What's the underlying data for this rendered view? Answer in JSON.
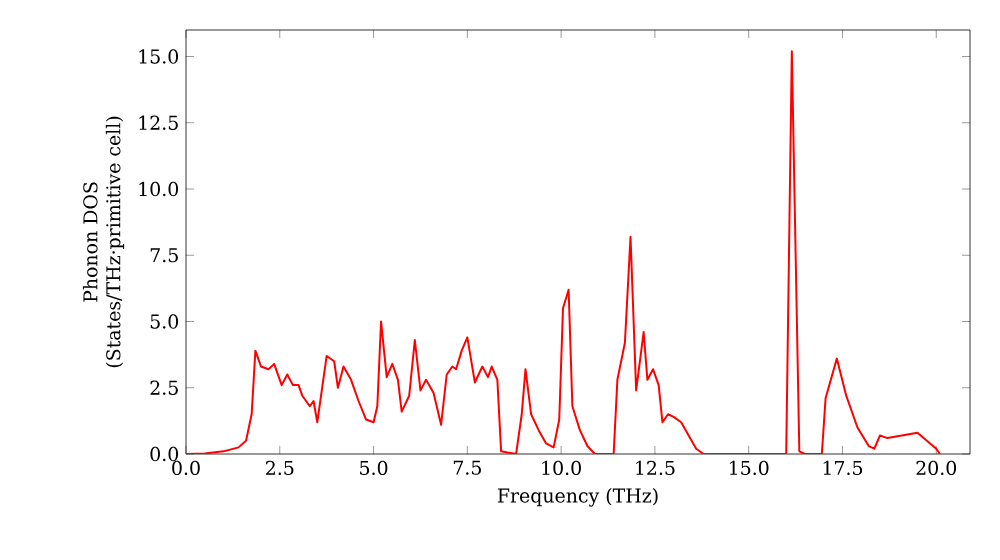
{
  "chart_data": {
    "type": "line",
    "xlabel": "Frequency (THz)",
    "ylabel": "Phonon DOS\n(States/THz·primitive cell)",
    "xlim": [
      0,
      20.9
    ],
    "ylim": [
      0,
      16
    ],
    "xticks": [
      {
        "value": 0,
        "label": "0.0"
      },
      {
        "value": 2.5,
        "label": "2.5"
      },
      {
        "value": 5,
        "label": "5.0"
      },
      {
        "value": 7.5,
        "label": "7.5"
      },
      {
        "value": 10,
        "label": "10.0"
      },
      {
        "value": 12.5,
        "label": "12.5"
      },
      {
        "value": 15,
        "label": "15.0"
      },
      {
        "value": 17.5,
        "label": "17.5"
      },
      {
        "value": 20,
        "label": "20.0"
      }
    ],
    "yticks": [
      {
        "value": 0,
        "label": "0.0"
      },
      {
        "value": 2.5,
        "label": "2.5"
      },
      {
        "value": 5,
        "label": "5.0"
      },
      {
        "value": 7.5,
        "label": "7.5"
      },
      {
        "value": 10,
        "label": "10.0"
      },
      {
        "value": 12.5,
        "label": "12.5"
      },
      {
        "value": 15,
        "label": "15.0"
      }
    ],
    "grid": false,
    "marker": "none",
    "line_style": "solid",
    "series": [
      {
        "color": "#ff0000",
        "x": [
          0,
          0.5,
          1.0,
          1.4,
          1.6,
          1.75,
          1.85,
          2.0,
          2.2,
          2.35,
          2.55,
          2.7,
          2.85,
          3.0,
          3.1,
          3.3,
          3.4,
          3.5,
          3.75,
          3.95,
          4.05,
          4.2,
          4.4,
          4.6,
          4.8,
          5.0,
          5.1,
          5.2,
          5.35,
          5.5,
          5.65,
          5.75,
          5.95,
          6.1,
          6.25,
          6.4,
          6.6,
          6.8,
          6.95,
          7.1,
          7.2,
          7.35,
          7.5,
          7.7,
          7.9,
          8.05,
          8.15,
          8.3,
          8.4,
          8.8,
          8.95,
          9.05,
          9.2,
          9.4,
          9.6,
          9.8,
          9.95,
          10.05,
          10.2,
          10.3,
          10.5,
          10.7,
          10.9,
          11.4,
          11.5,
          11.7,
          11.85,
          12.0,
          12.2,
          12.3,
          12.45,
          12.6,
          12.7,
          12.85,
          13.0,
          13.2,
          13.4,
          13.6,
          13.8,
          16.0,
          16.15,
          16.35,
          16.5,
          16.95,
          17.05,
          17.35,
          17.6,
          17.9,
          18.2,
          18.35,
          18.5,
          18.7,
          19.5,
          20.0,
          20.1
        ],
        "values": [
          0,
          0.02,
          0.1,
          0.25,
          0.5,
          1.5,
          3.9,
          3.3,
          3.2,
          3.4,
          2.6,
          3.0,
          2.6,
          2.6,
          2.2,
          1.8,
          2.0,
          1.2,
          3.7,
          3.5,
          2.5,
          3.3,
          2.8,
          2.0,
          1.3,
          1.2,
          1.8,
          5.0,
          2.9,
          3.4,
          2.8,
          1.6,
          2.2,
          4.3,
          2.4,
          2.8,
          2.3,
          1.1,
          3.0,
          3.3,
          3.2,
          3.9,
          4.4,
          2.7,
          3.3,
          2.9,
          3.3,
          2.8,
          0.1,
          0,
          1.5,
          3.2,
          1.5,
          0.9,
          0.4,
          0.25,
          1.3,
          5.5,
          6.2,
          1.8,
          0.9,
          0.3,
          0,
          0,
          2.8,
          4.2,
          8.2,
          2.4,
          4.6,
          2.8,
          3.2,
          2.6,
          1.2,
          1.5,
          1.4,
          1.2,
          0.7,
          0.2,
          0,
          0,
          15.2,
          0.1,
          0,
          0,
          2.1,
          3.6,
          2.2,
          1.0,
          0.3,
          0.2,
          0.7,
          0.6,
          0.8,
          0.2,
          0
        ]
      }
    ]
  }
}
